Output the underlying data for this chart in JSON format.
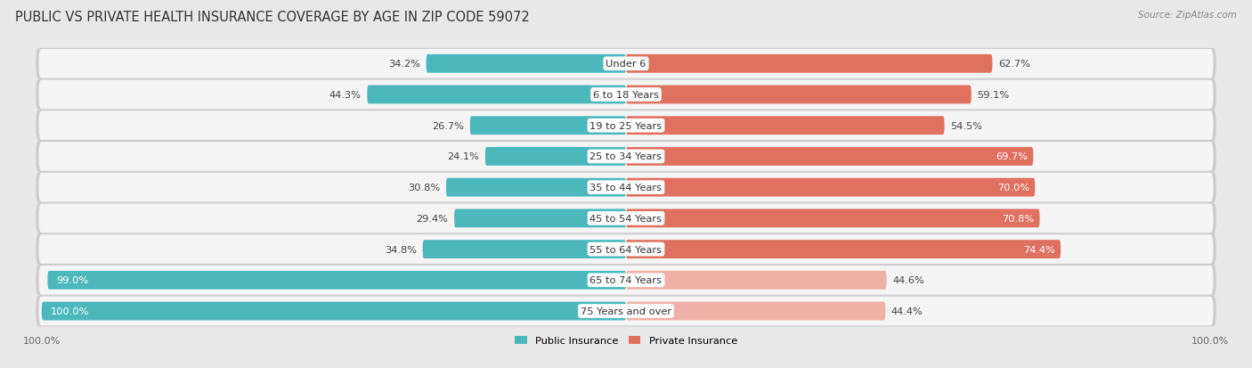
{
  "title": "PUBLIC VS PRIVATE HEALTH INSURANCE COVERAGE BY AGE IN ZIP CODE 59072",
  "source": "Source: ZipAtlas.com",
  "categories": [
    "Under 6",
    "6 to 18 Years",
    "19 to 25 Years",
    "25 to 34 Years",
    "35 to 44 Years",
    "45 to 54 Years",
    "55 to 64 Years",
    "65 to 74 Years",
    "75 Years and over"
  ],
  "public_values": [
    34.2,
    44.3,
    26.7,
    24.1,
    30.8,
    29.4,
    34.8,
    99.0,
    100.0
  ],
  "private_values": [
    62.7,
    59.1,
    54.5,
    69.7,
    70.0,
    70.8,
    74.4,
    44.6,
    44.4
  ],
  "public_color": "#4db8bc",
  "private_color_strong": "#e07060",
  "private_color_light": "#efb0a8",
  "bg_color": "#e8e8e8",
  "row_bg_color": "#f5f5f5",
  "row_shadow_color": "#cccccc",
  "max_value": 100.0,
  "title_fontsize": 10.5,
  "label_fontsize": 8.2,
  "tick_fontsize": 8,
  "private_white_label_threshold": 65.0,
  "public_white_label_threshold": 50.0
}
